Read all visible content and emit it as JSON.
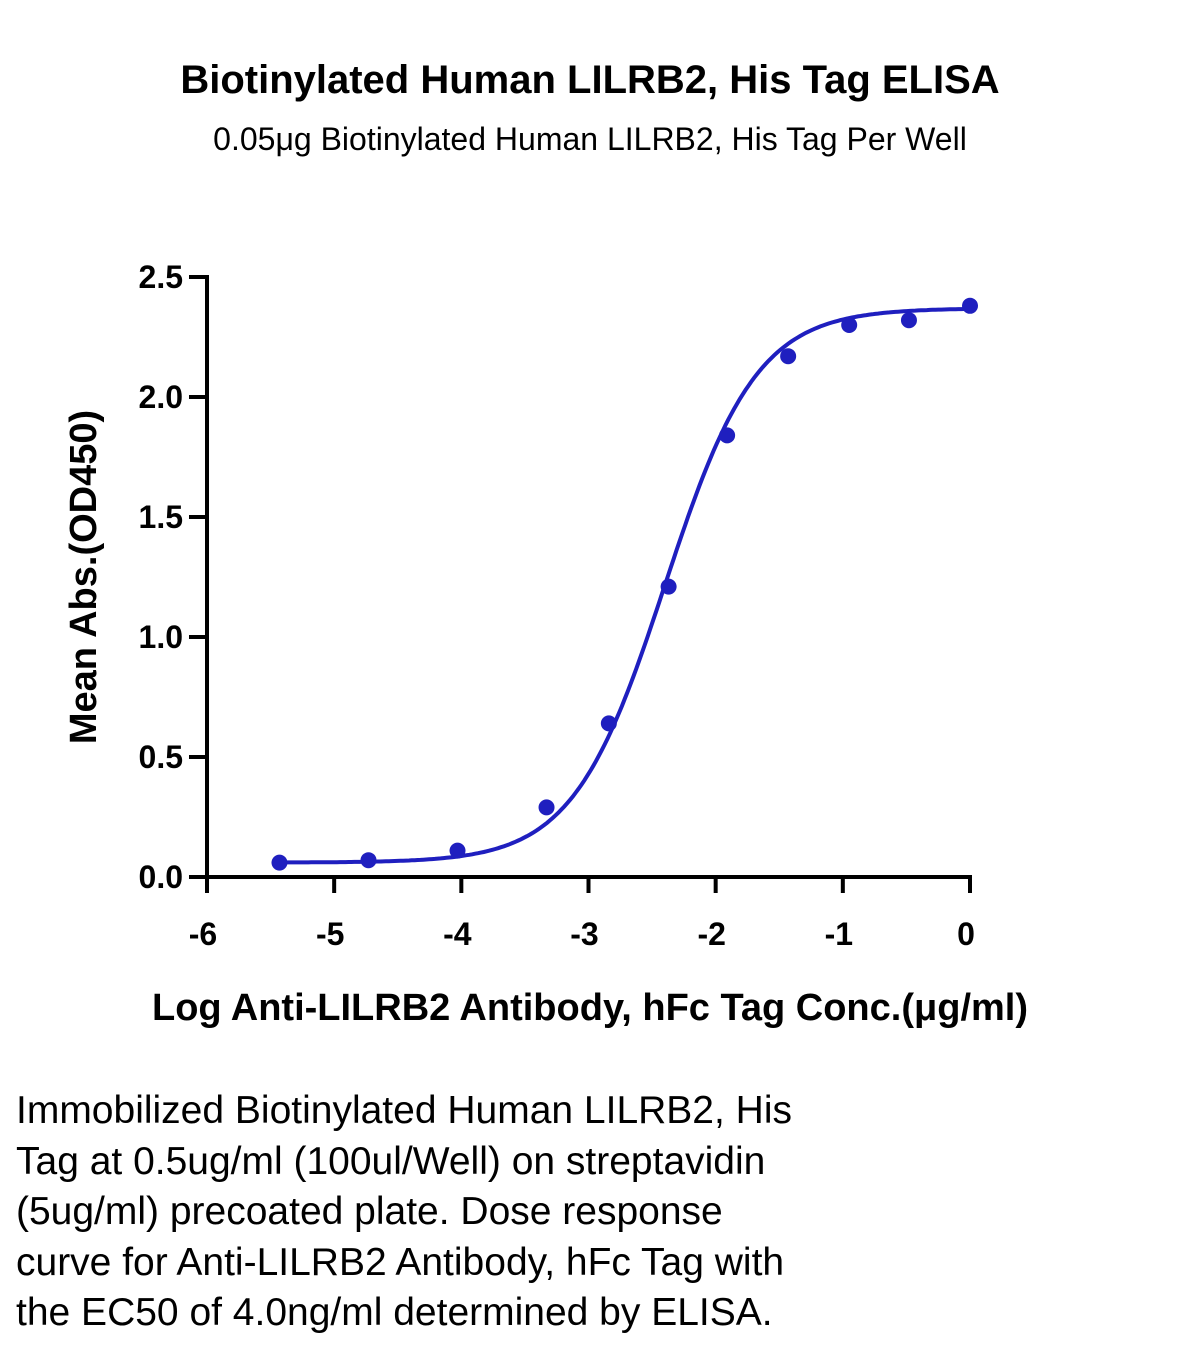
{
  "chart_data": {
    "type": "scatter",
    "title": "Biotinylated Human LILRB2, His Tag ELISA",
    "subtitle": "0.05μg Biotinylated Human LILRB2, His Tag Per Well",
    "xlabel": "Log Anti-LILRB2 Antibody, hFc Tag Conc.(μg/ml)",
    "ylabel": "Mean Abs.(OD450)",
    "xlim": [
      -6,
      0
    ],
    "ylim": [
      0,
      2.5
    ],
    "xticks": [
      "-6",
      "-5",
      "-4",
      "-3",
      "-2",
      "-1",
      "0"
    ],
    "yticks": [
      "0.0",
      "0.5",
      "1.0",
      "1.5",
      "2.0",
      "2.5"
    ],
    "grid": false,
    "color": "#1f1fbf",
    "series": [
      {
        "x": [
          -5.43,
          -4.73,
          -4.03,
          -3.33,
          -2.84,
          -2.37,
          -1.91,
          -1.43,
          -0.95,
          -0.48,
          0.0
        ],
        "y": [
          0.06,
          0.07,
          0.11,
          0.29,
          0.64,
          1.21,
          1.84,
          2.17,
          2.3,
          2.32,
          2.38
        ]
      }
    ],
    "fit": {
      "model": "4PL",
      "bottom": 0.06,
      "top": 2.37,
      "logEC50": -2.4,
      "hill": 1.2
    }
  },
  "caption": "Immobilized Biotinylated Human LILRB2, His\nTag at 0.5ug/ml (100ul/Well) on streptavidin\n(5ug/ml) precoated plate. Dose response\ncurve for Anti-LILRB2 Antibody, hFc Tag with\nthe EC50 of 4.0ng/ml determined by ELISA."
}
